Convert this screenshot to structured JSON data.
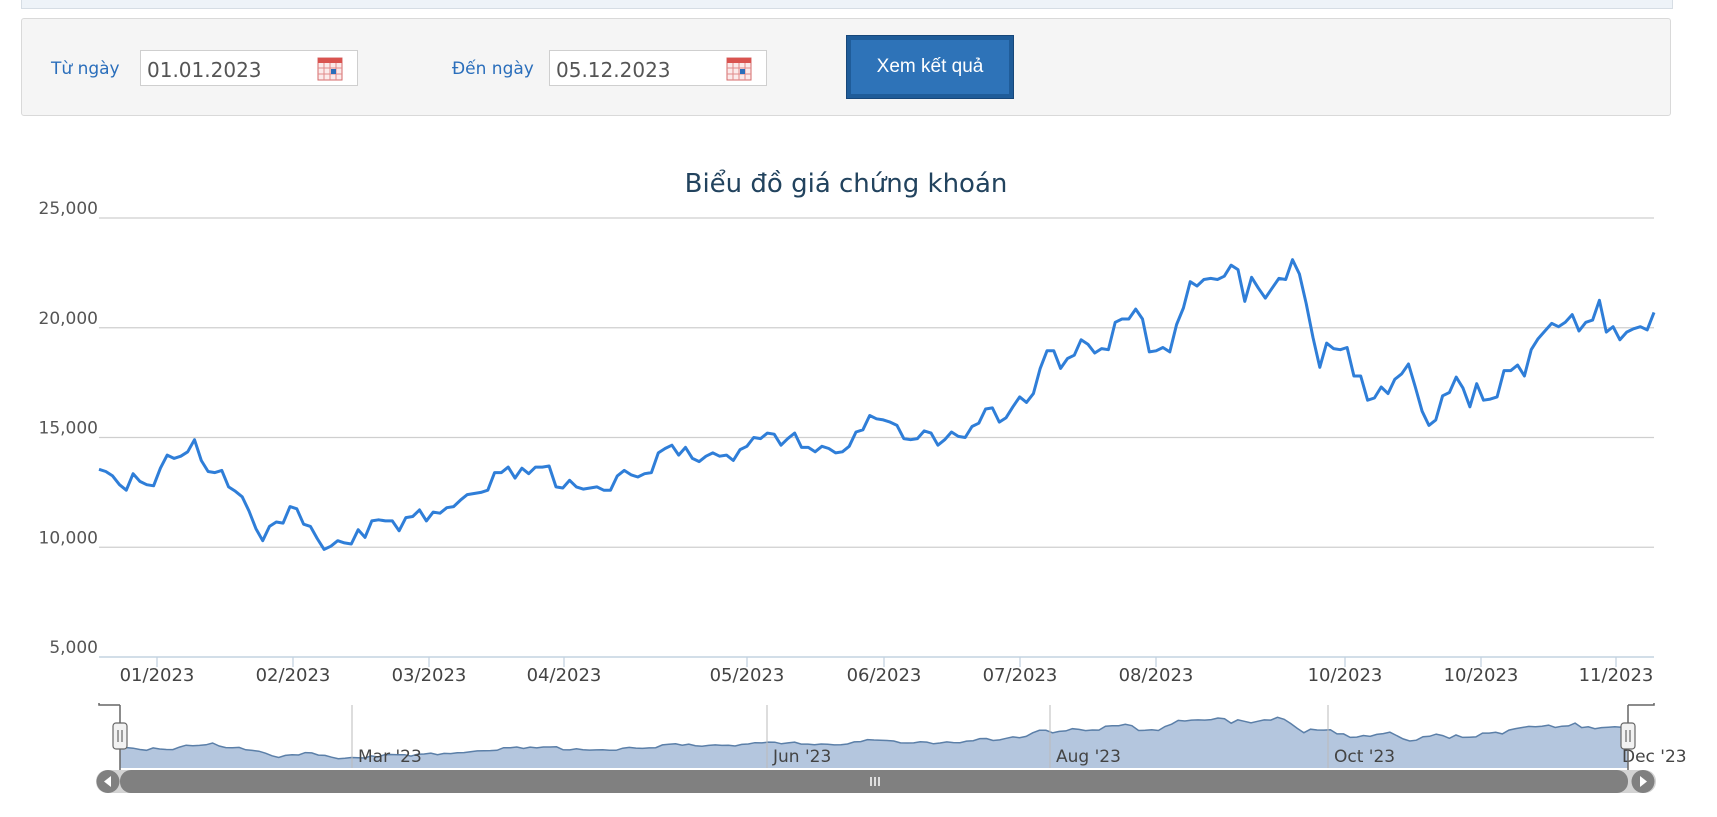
{
  "filter": {
    "from_label": "Từ ngày",
    "from_value": "01.01.2023",
    "to_label": "Đến ngày",
    "to_value": "05.12.2023",
    "submit_label": "Xem kết quả"
  },
  "colors": {
    "line": "#2f7ed8",
    "navigator_fill": "#b4c6de",
    "navigator_line": "#5b7fa8",
    "scrollbar": "#808080"
  },
  "chart_data": {
    "type": "line",
    "title": "Biểu đồ giá chứng khoán",
    "ylim": [
      5000,
      25000
    ],
    "y_ticks": [
      25000,
      20000,
      15000,
      10000,
      5000
    ],
    "y_tick_labels": [
      "25,000",
      "20,000",
      "15,000",
      "10,000",
      "5,000"
    ],
    "x_tick_labels": [
      "01/2023",
      "02/2023",
      "03/2023",
      "04/2023",
      "05/2023",
      "06/2023",
      "07/2023",
      "08/2023",
      "10/2023",
      "10/2023",
      "11/2023"
    ],
    "grid": true,
    "legend": "none",
    "series": [
      {
        "values": [
          13550,
          13450,
          13250,
          12850,
          12600,
          13350,
          13000,
          12850,
          12800,
          13600,
          14200,
          14050,
          14150,
          14350,
          14900,
          13950,
          13450,
          13400,
          13500,
          12750,
          12550,
          12300,
          11650,
          10850,
          10300,
          10950,
          11150,
          11100,
          11850,
          11750,
          11050,
          10950,
          10400,
          9900,
          10050,
          10300,
          10200,
          10150,
          10800,
          10450,
          11200,
          11250,
          11200,
          11200,
          10750,
          11350,
          11400,
          11700,
          11200,
          11600,
          11550,
          11800,
          11850,
          12150,
          12400,
          12450,
          12500,
          12600,
          13400,
          13400,
          13650,
          13150,
          13600,
          13350,
          13650,
          13650,
          13700,
          12750,
          12700,
          13050,
          12750,
          12650,
          12700,
          12750,
          12600,
          12600,
          13250,
          13500,
          13300,
          13200,
          13350,
          13400,
          14300,
          14500,
          14650,
          14200,
          14550,
          14050,
          13900,
          14150,
          14300,
          14150,
          14200,
          13950,
          14450,
          14600,
          15000,
          14950,
          15200,
          15150,
          14650,
          14950,
          15200,
          14550,
          14550,
          14350,
          14600,
          14500,
          14300,
          14350,
          14600,
          15250,
          15350,
          16000,
          15850,
          15800,
          15700,
          15550,
          14950,
          14900,
          14950,
          15300,
          15200,
          14650,
          14900,
          15250,
          15050,
          15000,
          15500,
          15650,
          16300,
          16350,
          15700,
          15900,
          16400,
          16850,
          16600,
          17000,
          18150,
          18950,
          18950,
          18150,
          18600,
          18750,
          19450,
          19250,
          18850,
          19050,
          19000,
          20250,
          20400,
          20400,
          20850,
          20400,
          18900,
          18950,
          19100,
          18900,
          20150,
          20900,
          22100,
          21900,
          22200,
          22250,
          22200,
          22350,
          22850,
          22650,
          21200,
          22300,
          21800,
          21350,
          21800,
          22250,
          22200,
          23100,
          22450,
          21100,
          19550,
          18200,
          19300,
          19050,
          19000,
          19100,
          17800,
          17800,
          16700,
          16800,
          17300,
          17000,
          17650,
          17900,
          18350,
          17300,
          16200,
          15550,
          15800,
          16900,
          17050,
          17750,
          17250,
          16400,
          17450,
          16700,
          16750,
          16850,
          18050,
          18050,
          18300,
          17800,
          19000,
          19500,
          19850,
          20200,
          20050,
          20250,
          20600,
          19850,
          20250,
          20350,
          21250,
          19800,
          20050,
          19450,
          19800,
          19950,
          20050,
          19900,
          20700
        ]
      }
    ],
    "navigator_x_labels": [
      "Mar '23",
      "Jun '23",
      "Aug '23",
      "Oct '23",
      "Dec '23"
    ]
  }
}
